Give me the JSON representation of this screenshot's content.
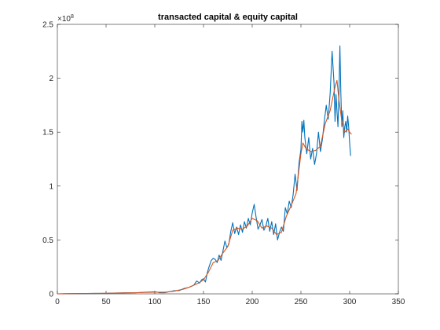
{
  "chart_data": {
    "type": "line",
    "title": "transacted capital & equity capital",
    "xlabel": "",
    "ylabel": "",
    "xlim": [
      0,
      350
    ],
    "ylim": [
      0,
      250000000
    ],
    "x_ticks": [
      0,
      50,
      100,
      150,
      200,
      250,
      300,
      350
    ],
    "y_ticks": [
      0,
      50000000,
      100000000,
      150000000,
      200000000,
      250000000
    ],
    "y_tick_labels": [
      "0",
      "0.5",
      "1",
      "1.5",
      "2",
      "2.5"
    ],
    "y_exponent_base": "×10",
    "y_exponent_power": "8",
    "grid": false,
    "series": [
      {
        "color": "#0072BD",
        "points": [
          [
            0,
            0
          ],
          [
            10,
            100000
          ],
          [
            20,
            200000
          ],
          [
            30,
            300000
          ],
          [
            40,
            400000
          ],
          [
            50,
            500000
          ],
          [
            60,
            800000
          ],
          [
            70,
            1000000
          ],
          [
            80,
            1000000
          ],
          [
            90,
            1500000
          ],
          [
            100,
            2000000
          ],
          [
            105,
            1000000
          ],
          [
            110,
            1000000
          ],
          [
            115,
            2000000
          ],
          [
            120,
            3000000
          ],
          [
            125,
            3000000
          ],
          [
            130,
            5000000
          ],
          [
            135,
            6000000
          ],
          [
            140,
            8000000
          ],
          [
            143,
            12000000
          ],
          [
            146,
            10000000
          ],
          [
            148,
            13000000
          ],
          [
            150,
            14000000
          ],
          [
            152,
            11000000
          ],
          [
            154,
            20000000
          ],
          [
            156,
            26000000
          ],
          [
            158,
            31000000
          ],
          [
            160,
            33000000
          ],
          [
            162,
            32000000
          ],
          [
            164,
            29000000
          ],
          [
            166,
            36000000
          ],
          [
            168,
            31000000
          ],
          [
            170,
            40000000
          ],
          [
            172,
            49000000
          ],
          [
            174,
            43000000
          ],
          [
            176,
            46000000
          ],
          [
            178,
            58000000
          ],
          [
            180,
            66000000
          ],
          [
            182,
            56000000
          ],
          [
            184,
            62000000
          ],
          [
            186,
            55000000
          ],
          [
            188,
            64000000
          ],
          [
            190,
            57000000
          ],
          [
            192,
            67000000
          ],
          [
            194,
            61000000
          ],
          [
            196,
            70000000
          ],
          [
            198,
            64000000
          ],
          [
            200,
            75000000
          ],
          [
            202,
            83000000
          ],
          [
            204,
            71000000
          ],
          [
            206,
            60000000
          ],
          [
            208,
            64000000
          ],
          [
            210,
            69000000
          ],
          [
            212,
            59000000
          ],
          [
            214,
            63000000
          ],
          [
            216,
            70000000
          ],
          [
            218,
            58000000
          ],
          [
            220,
            67000000
          ],
          [
            222,
            55000000
          ],
          [
            224,
            65000000
          ],
          [
            226,
            50000000
          ],
          [
            228,
            57000000
          ],
          [
            230,
            62000000
          ],
          [
            232,
            58000000
          ],
          [
            234,
            80000000
          ],
          [
            236,
            74000000
          ],
          [
            238,
            86000000
          ],
          [
            240,
            80000000
          ],
          [
            242,
            92000000
          ],
          [
            244,
            111000000
          ],
          [
            246,
            96000000
          ],
          [
            248,
            121000000
          ],
          [
            250,
            134000000
          ],
          [
            251,
            160000000
          ],
          [
            252,
            150000000
          ],
          [
            253,
            161000000
          ],
          [
            254,
            145000000
          ],
          [
            256,
            130000000
          ],
          [
            258,
            145000000
          ],
          [
            260,
            125000000
          ],
          [
            262,
            135000000
          ],
          [
            264,
            120000000
          ],
          [
            266,
            130000000
          ],
          [
            268,
            150000000
          ],
          [
            270,
            132000000
          ],
          [
            272,
            143000000
          ],
          [
            274,
            160000000
          ],
          [
            276,
            175000000
          ],
          [
            278,
            162000000
          ],
          [
            280,
            186000000
          ],
          [
            282,
            225000000
          ],
          [
            284,
            195000000
          ],
          [
            285,
            160000000
          ],
          [
            286,
            185000000
          ],
          [
            287,
            170000000
          ],
          [
            288,
            155000000
          ],
          [
            289,
            185000000
          ],
          [
            290,
            230000000
          ],
          [
            291,
            185000000
          ],
          [
            292,
            155000000
          ],
          [
            293,
            170000000
          ],
          [
            294,
            145000000
          ],
          [
            295,
            155000000
          ],
          [
            296,
            160000000
          ],
          [
            297,
            150000000
          ],
          [
            298,
            165000000
          ],
          [
            299,
            155000000
          ],
          [
            300,
            140000000
          ],
          [
            301,
            128000000
          ]
        ]
      },
      {
        "color": "#D95319",
        "points": [
          [
            0,
            0
          ],
          [
            10,
            100000
          ],
          [
            20,
            200000
          ],
          [
            30,
            300000
          ],
          [
            40,
            400000
          ],
          [
            50,
            500000
          ],
          [
            60,
            700000
          ],
          [
            70,
            900000
          ],
          [
            80,
            1000000
          ],
          [
            90,
            1300000
          ],
          [
            100,
            1600000
          ],
          [
            110,
            1500000
          ],
          [
            120,
            2500000
          ],
          [
            130,
            4500000
          ],
          [
            135,
            6000000
          ],
          [
            140,
            8000000
          ],
          [
            145,
            10000000
          ],
          [
            150,
            13000000
          ],
          [
            155,
            20000000
          ],
          [
            160,
            29000000
          ],
          [
            165,
            31000000
          ],
          [
            170,
            38000000
          ],
          [
            175,
            44000000
          ],
          [
            180,
            59000000
          ],
          [
            185,
            61000000
          ],
          [
            190,
            60000000
          ],
          [
            195,
            63000000
          ],
          [
            200,
            70000000
          ],
          [
            205,
            68000000
          ],
          [
            210,
            61000000
          ],
          [
            215,
            63000000
          ],
          [
            220,
            61000000
          ],
          [
            225,
            55000000
          ],
          [
            230,
            57000000
          ],
          [
            235,
            72000000
          ],
          [
            240,
            82000000
          ],
          [
            245,
            93000000
          ],
          [
            250,
            130000000
          ],
          [
            252,
            140000000
          ],
          [
            255,
            135000000
          ],
          [
            260,
            132000000
          ],
          [
            265,
            133000000
          ],
          [
            270,
            137000000
          ],
          [
            275,
            158000000
          ],
          [
            280,
            170000000
          ],
          [
            285,
            192000000
          ],
          [
            287,
            198000000
          ],
          [
            289,
            180000000
          ],
          [
            292,
            160000000
          ],
          [
            295,
            150000000
          ],
          [
            298,
            153000000
          ],
          [
            300,
            150000000
          ],
          [
            302,
            148000000
          ]
        ]
      }
    ]
  }
}
